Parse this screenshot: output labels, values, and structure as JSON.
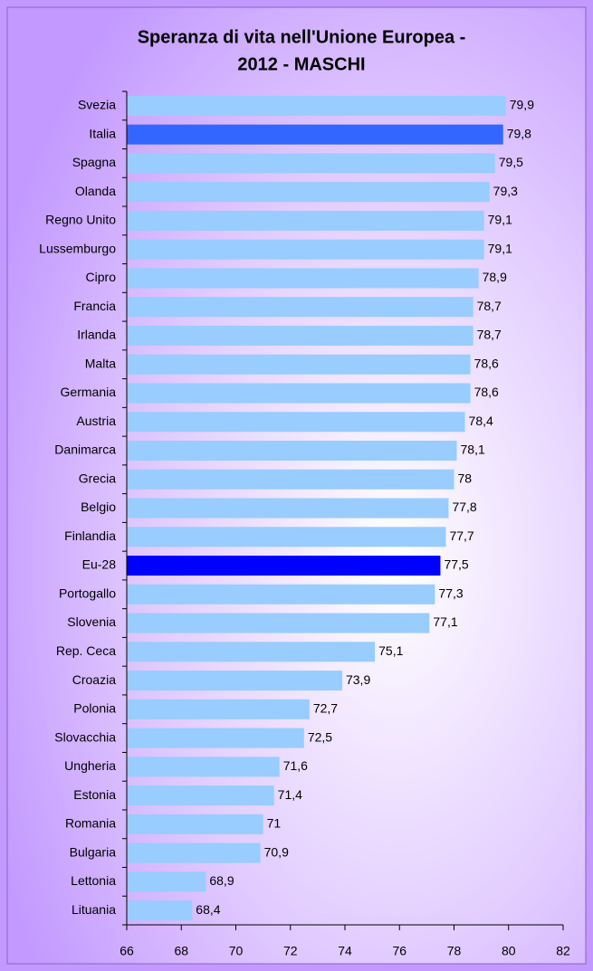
{
  "chart_data": {
    "type": "bar",
    "orientation": "horizontal",
    "title": [
      "Speranza di vita nell'Unione Europea -",
      "2012 - MASCHI"
    ],
    "categories": [
      "Svezia",
      "Italia",
      "Spagna",
      "Olanda",
      "Regno Unito",
      "Lussemburgo",
      "Cipro",
      "Francia",
      "Irlanda",
      "Malta",
      "Germania",
      "Austria",
      "Danimarca",
      "Grecia",
      "Belgio",
      "Finlandia",
      "Eu-28",
      "Portogallo",
      "Slovenia",
      "Rep. Ceca",
      "Croazia",
      "Polonia",
      "Slovacchia",
      "Ungheria",
      "Estonia",
      "Romania",
      "Bulgaria",
      "Lettonia",
      "Lituania"
    ],
    "values": [
      79.9,
      79.8,
      79.5,
      79.3,
      79.1,
      79.1,
      78.9,
      78.7,
      78.7,
      78.6,
      78.6,
      78.4,
      78.1,
      78,
      77.8,
      77.7,
      77.5,
      77.3,
      77.1,
      75.1,
      73.9,
      72.7,
      72.5,
      71.6,
      71.4,
      71,
      70.9,
      68.9,
      68.4
    ],
    "value_labels": [
      "79,9",
      "79,8",
      "79,5",
      "79,3",
      "79,1",
      "79,1",
      "78,9",
      "78,7",
      "78,7",
      "78,6",
      "78,6",
      "78,4",
      "78,1",
      "78",
      "77,8",
      "77,7",
      "77,5",
      "77,3",
      "77,1",
      "75,1",
      "73,9",
      "72,7",
      "72,5",
      "71,6",
      "71,4",
      "71",
      "70,9",
      "68,9",
      "68,4"
    ],
    "colors": [
      "#99ccff",
      "#3366ff",
      "#99ccff",
      "#99ccff",
      "#99ccff",
      "#99ccff",
      "#99ccff",
      "#99ccff",
      "#99ccff",
      "#99ccff",
      "#99ccff",
      "#99ccff",
      "#99ccff",
      "#99ccff",
      "#99ccff",
      "#99ccff",
      "#0000ff",
      "#99ccff",
      "#99ccff",
      "#99ccff",
      "#99ccff",
      "#99ccff",
      "#99ccff",
      "#99ccff",
      "#99ccff",
      "#99ccff",
      "#99ccff",
      "#99ccff",
      "#99ccff"
    ],
    "xlim": [
      66,
      82
    ],
    "xticks": [
      66,
      68,
      70,
      72,
      74,
      76,
      78,
      80,
      82
    ],
    "grid": false
  }
}
